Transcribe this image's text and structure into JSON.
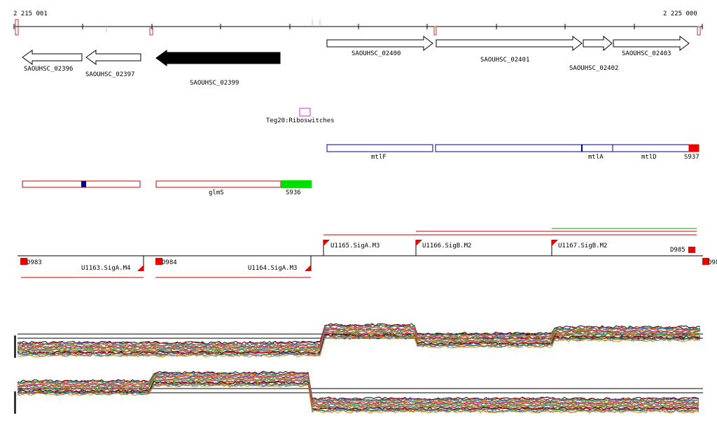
{
  "ruler": {
    "start_label": "2 215 001",
    "end_label": "2 225 000"
  },
  "colors": {
    "annotation_box": "#cc0000",
    "transcript_box": "#000080",
    "riboswitch_box": "#cc33cc",
    "gene_fill": "#000000",
    "gene_outline": "#000000",
    "region_green": "#00dd00",
    "region_red": "#ee0000",
    "navy_marker": "#000080"
  },
  "genes": {
    "g02396": "SAOUHSC_02396",
    "g02397": "SAOUHSC_02397",
    "g02399": "SAOUHSC_02399",
    "g02400": "SAOUHSC_02400",
    "g02401": "SAOUHSC_02401",
    "g02402": "SAOUHSC_02402",
    "g02403": "SAOUHSC_02403"
  },
  "riboswitch": {
    "label": "Teg20:Riboswitches"
  },
  "transcripts": {
    "mtlF": "mtlF",
    "mtlA": "mtlA",
    "mtlD": "mtlD",
    "S937": "S937",
    "glmS": "glmS",
    "S936": "S936"
  },
  "promoters": {
    "D983": "D983",
    "D984": "D984",
    "D985": "D985",
    "D98x": "D98",
    "U1163": "U1163.SigA.M4",
    "U1164": "U1164.SigA.M3",
    "U1165": "U1165.SigA.M3",
    "U1166": "U1166.SigB.M2",
    "U1167": "U1167.SigB.M2"
  },
  "expression_tracks": [
    {
      "strand": "forward",
      "icon": "expression-profile-icon"
    },
    {
      "strand": "reverse",
      "icon": "expression-profile-icon"
    }
  ]
}
